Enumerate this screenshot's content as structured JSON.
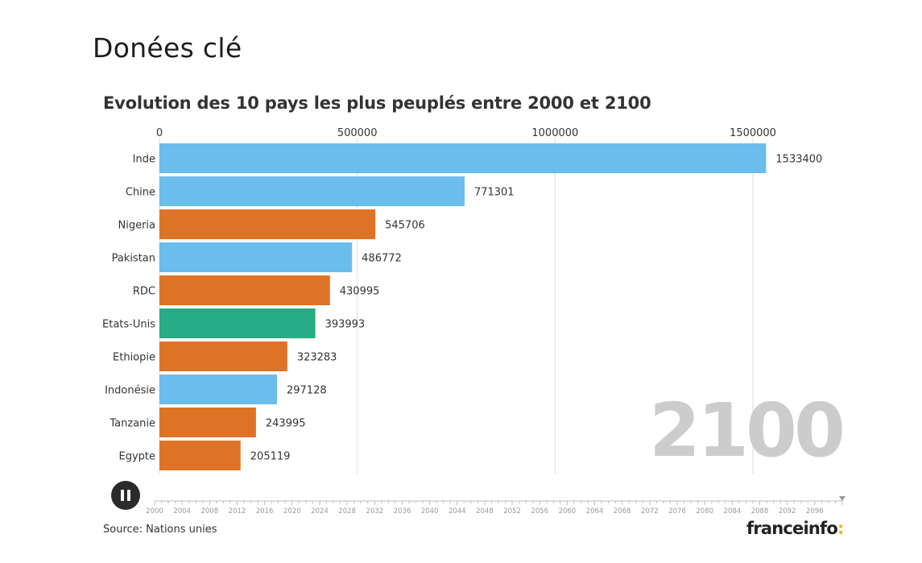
{
  "page_heading": "Donées clé",
  "source": "Source: Nations unies",
  "brand": {
    "name": "franceinfo",
    "accent": ":"
  },
  "colors": {
    "asia": "#6bbdeb",
    "africa": "#de7326",
    "america": "#27ad86",
    "grid": "#dddddd",
    "year": "#cccccc"
  },
  "chart_data": {
    "type": "bar",
    "orientation": "horizontal",
    "title": "Evolution des 10 pays les plus peuplés entre 2000 et 2100",
    "xlabel": "",
    "ylabel": "",
    "xlim": [
      0,
      1660000
    ],
    "xticks": [
      0,
      500000,
      1000000,
      1500000
    ],
    "xtick_labels": [
      "0",
      "500000",
      "1000000",
      "1500000"
    ],
    "grid": true,
    "year": "2100",
    "categories": [
      "Inde",
      "Chine",
      "Nigeria",
      "Pakistan",
      "RDC",
      "Etats-Unis",
      "Ethiopie",
      "Indonésie",
      "Tanzanie",
      "Egypte"
    ],
    "values": [
      1533400,
      771301,
      545706,
      486772,
      430995,
      393993,
      323283,
      297128,
      243995,
      205119
    ],
    "value_labels": [
      "1533400",
      "771301",
      "545706",
      "486772",
      "430995",
      "393993",
      "323283",
      "297128",
      "243995",
      "205119"
    ],
    "groups": [
      "asia",
      "asia",
      "africa",
      "asia",
      "africa",
      "america",
      "africa",
      "asia",
      "africa",
      "africa"
    ],
    "timeline": {
      "start": 2000,
      "end": 2100,
      "current": 2100,
      "labels": [
        "2000",
        "2004",
        "2008",
        "2012",
        "2016",
        "2020",
        "2024",
        "2028",
        "2032",
        "2036",
        "2040",
        "2044",
        "2048",
        "2052",
        "2056",
        "2060",
        "2064",
        "2068",
        "2072",
        "2076",
        "2080",
        "2084",
        "2088",
        "2092",
        "2096"
      ]
    }
  }
}
